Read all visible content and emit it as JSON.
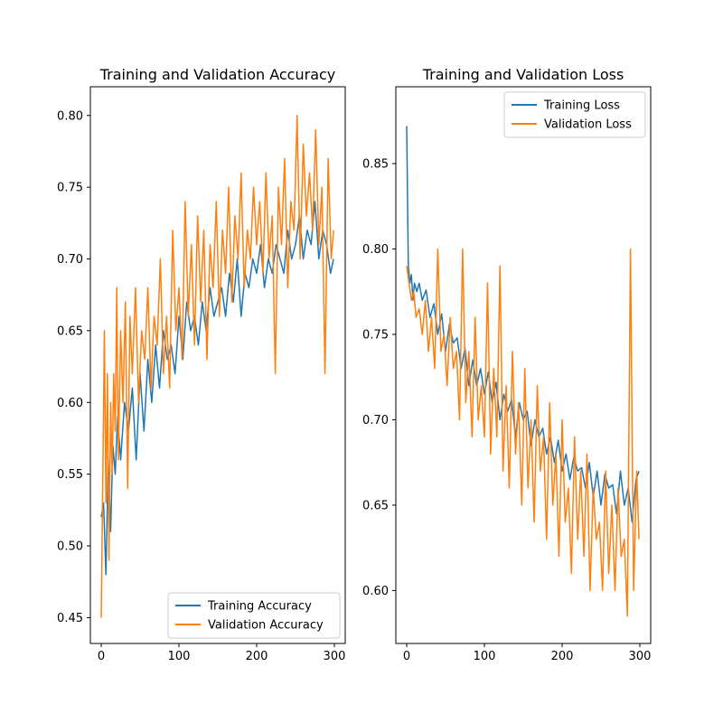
{
  "chart_data": [
    {
      "type": "line",
      "title": "Training and Validation Accuracy",
      "xlim": [
        -14,
        314
      ],
      "ylim": [
        0.432,
        0.82
      ],
      "xticks": [
        0,
        100,
        200,
        300
      ],
      "xtick_labels": [
        "0",
        "100",
        "200",
        "300"
      ],
      "yticks": [
        0.45,
        0.5,
        0.55,
        0.6,
        0.65,
        0.7,
        0.75,
        0.8
      ],
      "ytick_labels": [
        "0.45",
        "0.50",
        "0.55",
        "0.60",
        "0.65",
        "0.70",
        "0.75",
        "0.80"
      ],
      "legend_position": "lower-right",
      "series": [
        {
          "name": "Training Accuracy",
          "color": "#1f77b4",
          "x": [
            0,
            3,
            6,
            9,
            12,
            15,
            18,
            21,
            25,
            30,
            35,
            40,
            45,
            50,
            55,
            60,
            65,
            70,
            75,
            80,
            85,
            90,
            95,
            100,
            105,
            110,
            115,
            120,
            125,
            130,
            135,
            140,
            145,
            150,
            155,
            160,
            165,
            170,
            175,
            180,
            185,
            190,
            195,
            200,
            205,
            210,
            215,
            220,
            225,
            230,
            235,
            240,
            245,
            250,
            255,
            260,
            265,
            270,
            275,
            280,
            285,
            290,
            295,
            299
          ],
          "y": [
            0.52,
            0.53,
            0.48,
            0.56,
            0.51,
            0.57,
            0.55,
            0.59,
            0.56,
            0.6,
            0.58,
            0.61,
            0.56,
            0.62,
            0.58,
            0.63,
            0.6,
            0.64,
            0.61,
            0.65,
            0.63,
            0.64,
            0.62,
            0.66,
            0.63,
            0.67,
            0.65,
            0.66,
            0.64,
            0.67,
            0.65,
            0.68,
            0.66,
            0.67,
            0.68,
            0.66,
            0.69,
            0.67,
            0.7,
            0.66,
            0.69,
            0.68,
            0.7,
            0.69,
            0.71,
            0.68,
            0.7,
            0.69,
            0.71,
            0.7,
            0.69,
            0.72,
            0.7,
            0.71,
            0.73,
            0.7,
            0.72,
            0.71,
            0.74,
            0.7,
            0.72,
            0.71,
            0.69,
            0.7
          ]
        },
        {
          "name": "Validation Accuracy",
          "color": "#ff7f0e",
          "x": [
            0,
            2,
            4,
            6,
            8,
            10,
            12,
            14,
            16,
            18,
            20,
            22,
            25,
            28,
            31,
            34,
            37,
            40,
            44,
            48,
            52,
            56,
            60,
            64,
            68,
            72,
            76,
            80,
            84,
            88,
            92,
            96,
            100,
            104,
            108,
            112,
            116,
            120,
            124,
            128,
            132,
            136,
            140,
            144,
            148,
            152,
            156,
            160,
            164,
            168,
            172,
            176,
            180,
            184,
            188,
            192,
            196,
            200,
            204,
            208,
            212,
            216,
            220,
            224,
            228,
            232,
            236,
            240,
            244,
            248,
            252,
            256,
            260,
            264,
            268,
            272,
            276,
            280,
            284,
            288,
            292,
            296,
            299
          ],
          "y": [
            0.45,
            0.55,
            0.65,
            0.53,
            0.62,
            0.49,
            0.6,
            0.55,
            0.62,
            0.58,
            0.68,
            0.56,
            0.65,
            0.6,
            0.67,
            0.54,
            0.66,
            0.62,
            0.68,
            0.6,
            0.65,
            0.63,
            0.68,
            0.61,
            0.66,
            0.64,
            0.7,
            0.62,
            0.66,
            0.61,
            0.72,
            0.65,
            0.68,
            0.63,
            0.74,
            0.66,
            0.71,
            0.64,
            0.73,
            0.67,
            0.72,
            0.63,
            0.71,
            0.68,
            0.74,
            0.66,
            0.72,
            0.69,
            0.75,
            0.67,
            0.73,
            0.7,
            0.76,
            0.68,
            0.72,
            0.7,
            0.75,
            0.71,
            0.74,
            0.69,
            0.76,
            0.7,
            0.73,
            0.62,
            0.75,
            0.71,
            0.77,
            0.68,
            0.74,
            0.72,
            0.8,
            0.7,
            0.78,
            0.73,
            0.76,
            0.72,
            0.79,
            0.71,
            0.75,
            0.62,
            0.77,
            0.7,
            0.72
          ]
        }
      ]
    },
    {
      "type": "line",
      "title": "Training and Validation Loss",
      "xlim": [
        -14,
        314
      ],
      "ylim": [
        0.569,
        0.895
      ],
      "xticks": [
        0,
        100,
        200,
        300
      ],
      "xtick_labels": [
        "0",
        "100",
        "200",
        "300"
      ],
      "yticks": [
        0.6,
        0.65,
        0.7,
        0.75,
        0.8,
        0.85
      ],
      "ytick_labels": [
        "0.60",
        "0.65",
        "0.70",
        "0.75",
        "0.80",
        "0.85"
      ],
      "legend_position": "top-right",
      "series": [
        {
          "name": "Training Loss",
          "color": "#1f77b4",
          "x": [
            0,
            2,
            4,
            6,
            8,
            10,
            13,
            16,
            20,
            25,
            30,
            35,
            40,
            45,
            50,
            55,
            60,
            65,
            70,
            75,
            80,
            85,
            90,
            95,
            100,
            105,
            110,
            115,
            120,
            125,
            130,
            135,
            140,
            145,
            150,
            155,
            160,
            165,
            170,
            175,
            180,
            185,
            190,
            195,
            200,
            205,
            210,
            215,
            220,
            225,
            230,
            235,
            240,
            245,
            250,
            255,
            260,
            265,
            270,
            275,
            280,
            285,
            290,
            295,
            299
          ],
          "y": [
            0.872,
            0.79,
            0.78,
            0.785,
            0.77,
            0.78,
            0.775,
            0.78,
            0.77,
            0.776,
            0.76,
            0.768,
            0.75,
            0.762,
            0.74,
            0.756,
            0.745,
            0.748,
            0.73,
            0.742,
            0.72,
            0.735,
            0.72,
            0.73,
            0.715,
            0.728,
            0.71,
            0.722,
            0.7,
            0.715,
            0.705,
            0.712,
            0.69,
            0.71,
            0.7,
            0.705,
            0.685,
            0.7,
            0.69,
            0.695,
            0.68,
            0.69,
            0.675,
            0.688,
            0.67,
            0.68,
            0.665,
            0.678,
            0.67,
            0.672,
            0.66,
            0.675,
            0.655,
            0.67,
            0.65,
            0.668,
            0.66,
            0.662,
            0.645,
            0.67,
            0.65,
            0.66,
            0.64,
            0.665,
            0.67
          ]
        },
        {
          "name": "Validation Loss",
          "color": "#ff7f0e",
          "x": [
            0,
            3,
            6,
            9,
            12,
            16,
            20,
            24,
            28,
            32,
            36,
            40,
            44,
            48,
            52,
            56,
            60,
            64,
            68,
            72,
            76,
            80,
            84,
            88,
            92,
            96,
            100,
            104,
            108,
            112,
            116,
            120,
            124,
            128,
            132,
            136,
            140,
            144,
            148,
            152,
            156,
            160,
            164,
            168,
            172,
            176,
            180,
            184,
            188,
            192,
            196,
            200,
            204,
            208,
            212,
            216,
            220,
            224,
            228,
            232,
            236,
            240,
            244,
            248,
            252,
            256,
            260,
            264,
            268,
            272,
            276,
            280,
            284,
            288,
            292,
            296,
            299
          ],
          "y": [
            0.79,
            0.78,
            0.77,
            0.775,
            0.76,
            0.765,
            0.75,
            0.77,
            0.74,
            0.76,
            0.73,
            0.8,
            0.74,
            0.75,
            0.72,
            0.76,
            0.73,
            0.74,
            0.7,
            0.8,
            0.71,
            0.74,
            0.69,
            0.76,
            0.7,
            0.72,
            0.69,
            0.78,
            0.68,
            0.73,
            0.69,
            0.79,
            0.67,
            0.72,
            0.66,
            0.74,
            0.68,
            0.71,
            0.65,
            0.73,
            0.66,
            0.7,
            0.64,
            0.72,
            0.67,
            0.69,
            0.63,
            0.71,
            0.65,
            0.68,
            0.62,
            0.7,
            0.64,
            0.66,
            0.61,
            0.69,
            0.63,
            0.67,
            0.62,
            0.68,
            0.6,
            0.66,
            0.63,
            0.64,
            0.6,
            0.67,
            0.61,
            0.65,
            0.6,
            0.66,
            0.62,
            0.63,
            0.585,
            0.8,
            0.6,
            0.67,
            0.63
          ]
        }
      ]
    }
  ]
}
